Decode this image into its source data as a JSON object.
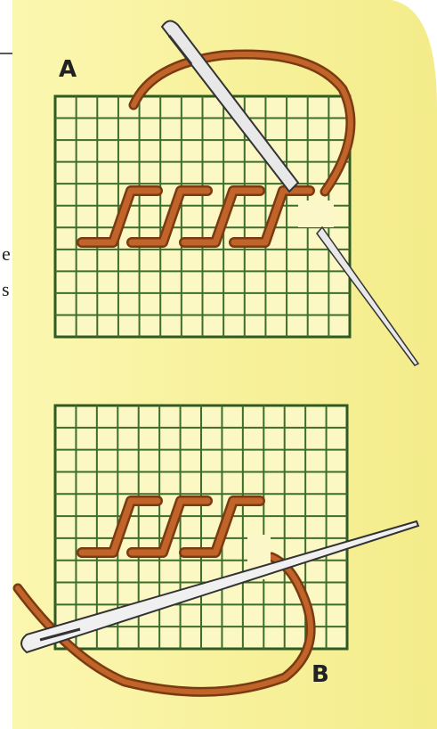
{
  "labels": {
    "a": "A",
    "b": "B"
  },
  "margin_text": [
    "e",
    "s"
  ]
}
